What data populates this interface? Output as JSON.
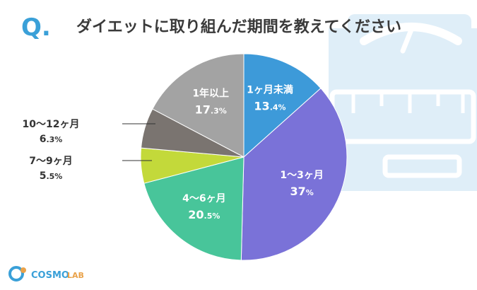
{
  "header": {
    "q_mark": "Q.",
    "question": "ダイエットに取り組んだ期間を教えてください"
  },
  "colors": {
    "accent": "#3aa0d8",
    "title_text": "#3a3a3a",
    "scale_illustration": "#dfeef8"
  },
  "logo": {
    "text_main": "COSMO",
    "text_sub": "LAB"
  },
  "chart_data": {
    "type": "pie",
    "title": "",
    "start_angle_deg": 0,
    "direction": "clockwise",
    "slices": [
      {
        "label": "1ヶ月未満",
        "value": 13.4,
        "num": "13",
        "dec": ".4%",
        "color": "#3d9ad9",
        "label_inside": true,
        "text_color": "#ffffff"
      },
      {
        "label": "1〜3ヶ月",
        "value": 37,
        "num": "37",
        "dec": "%",
        "color": "#7a72d8",
        "label_inside": true,
        "text_color": "#ffffff"
      },
      {
        "label": "4〜6ヶ月",
        "value": 20.5,
        "num": "20",
        "dec": ".5%",
        "color": "#48c59a",
        "label_inside": true,
        "text_color": "#ffffff"
      },
      {
        "label": "7〜9ヶ月",
        "value": 5.5,
        "num": "5",
        "dec": ".5%",
        "color": "#c3d93a",
        "label_inside": false,
        "text_color": "#333333"
      },
      {
        "label": "10〜12ヶ月",
        "value": 6.3,
        "num": "6",
        "dec": ".3%",
        "color": "#7a7470",
        "label_inside": false,
        "text_color": "#333333"
      },
      {
        "label": "1年以上",
        "value": 17.3,
        "num": "17",
        "dec": ".3%",
        "color": "#a3a3a3",
        "label_inside": true,
        "text_color": "#ffffff"
      }
    ]
  }
}
